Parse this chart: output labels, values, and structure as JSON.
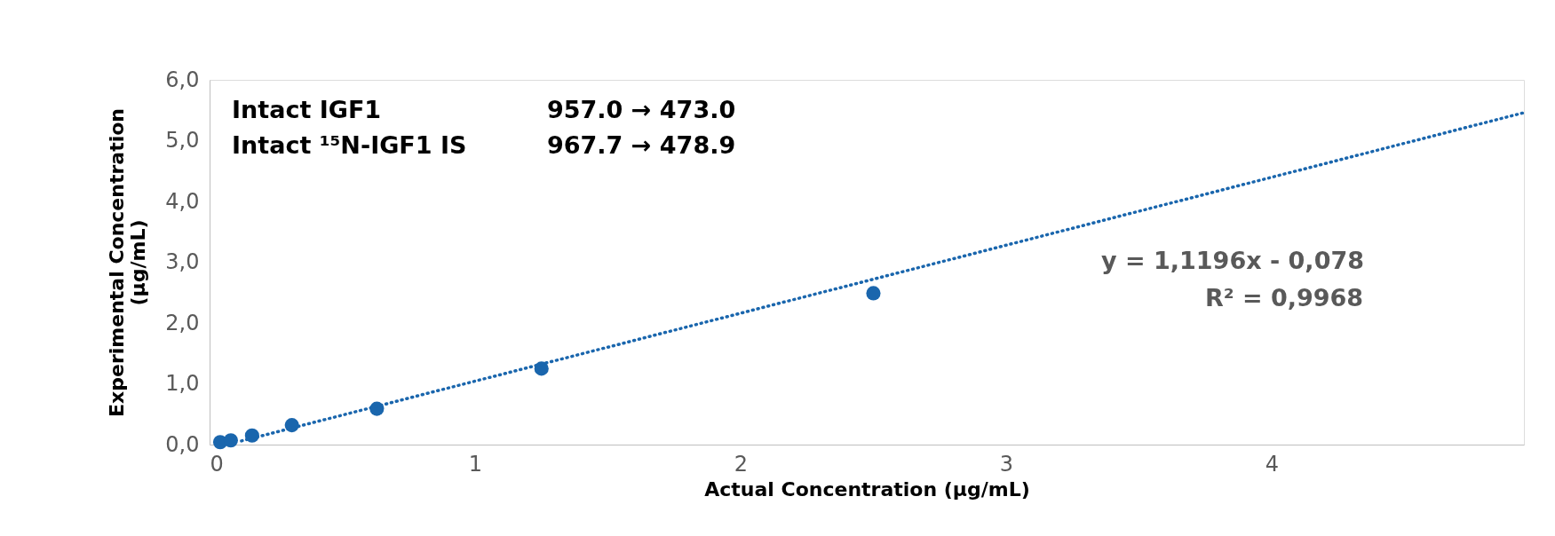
{
  "chart_data": {
    "type": "scatter",
    "xlabel": "Actual Concentration (µg/mL)",
    "ylabel": "Experimental Concentration (µg/mL)",
    "xlim": [
      0,
      4.95
    ],
    "xticks": [
      0,
      1,
      2,
      3,
      4
    ],
    "ylim": [
      0,
      6
    ],
    "yticks": [
      {
        "value": 0,
        "label": "0,0"
      },
      {
        "value": 1,
        "label": "1,0"
      },
      {
        "value": 2,
        "label": "2,0"
      },
      {
        "value": 3,
        "label": "3,0"
      },
      {
        "value": 4,
        "label": "4,0"
      },
      {
        "value": 5,
        "label": "5,0"
      },
      {
        "value": 6,
        "label": "6,0"
      }
    ],
    "grid": false,
    "series": [
      {
        "type": "scatter",
        "marker": "circle",
        "color": "#1a66ad",
        "x": [
          0.04,
          0.08,
          0.16,
          0.31,
          0.63,
          1.25,
          2.5
        ],
        "values": [
          0.04,
          0.07,
          0.15,
          0.32,
          0.59,
          1.25,
          2.49
        ]
      },
      {
        "type": "line",
        "marker": "none",
        "line_style": "dotted",
        "color": "#1a66ad",
        "x": [
          0.12,
          4.95
        ],
        "values": [
          0.06,
          5.46
        ]
      }
    ],
    "annotations": [
      "Intact IGF1",
      "957.0 → 473.0",
      "Intact ¹⁵N-IGF1 IS",
      "967.7 → 478.9",
      "y = 1,1196x - 0,078",
      "R² = 0,9968"
    ]
  }
}
